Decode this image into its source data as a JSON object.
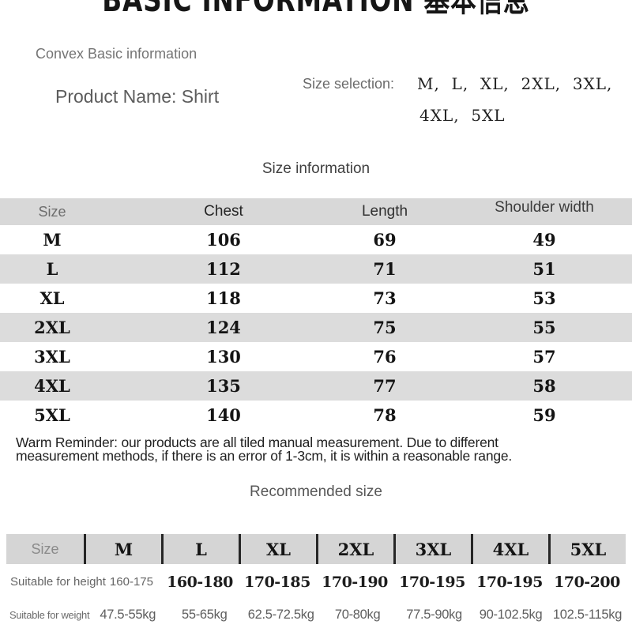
{
  "title": "BASIC INFORMATION 基本信息",
  "basic_info": {
    "section_label": "Convex Basic information",
    "product_name": "Product Name: Shirt",
    "size_selection_label": "Size selection:",
    "size_selection_line1": "M、L、XL、2XL、3XL、",
    "size_selection_line2": "4XL、5XL"
  },
  "size_table": {
    "heading": "Size information",
    "columns": [
      "Size",
      "Chest",
      "Length",
      "Shoulder width"
    ],
    "rows": [
      {
        "size": "M",
        "chest": "106",
        "length": "69",
        "shoulder": "49"
      },
      {
        "size": "L",
        "chest": "112",
        "length": "71",
        "shoulder": "51"
      },
      {
        "size": "XL",
        "chest": "118",
        "length": "73",
        "shoulder": "53"
      },
      {
        "size": "2XL",
        "chest": "124",
        "length": "75",
        "shoulder": "55"
      },
      {
        "size": "3XL",
        "chest": "130",
        "length": "76",
        "shoulder": "57"
      },
      {
        "size": "4XL",
        "chest": "135",
        "length": "77",
        "shoulder": "58"
      },
      {
        "size": "5XL",
        "chest": "140",
        "length": "78",
        "shoulder": "59"
      }
    ]
  },
  "reminder": {
    "line1": "Warm Reminder: our products are all tiled manual measurement. Due to different",
    "line2": "measurement methods, if there is an error of 1-3cm, it is within a reasonable range."
  },
  "recommended_table": {
    "heading": "Recommended size",
    "columns": [
      "Size",
      "M",
      "L",
      "XL",
      "2XL",
      "3XL",
      "4XL",
      "5XL"
    ],
    "height_row": {
      "label": "Suitable for height",
      "m_value": "160-175",
      "values": [
        "160-180",
        "170-185",
        "170-190",
        "170-195",
        "170-195",
        "170-200"
      ]
    },
    "weight_row": {
      "label": "Suitable for weight",
      "values": [
        "47.5-55kg",
        "55-65kg",
        "62.5-72.5kg",
        "70-80kg",
        "77.5-90kg",
        "90-102.5kg",
        "102.5-115kg"
      ]
    }
  },
  "colors": {
    "table_header_bg": "#d8d8d8",
    "row_stripe_bg": "#dcdcdc",
    "header_divider": "#262626",
    "text_dark": "#141414",
    "text_gray": "#6b6b6b"
  }
}
